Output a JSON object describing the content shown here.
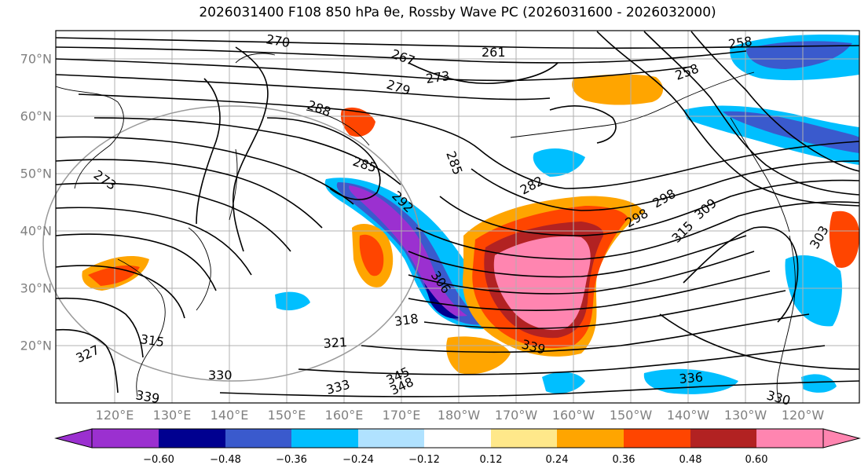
{
  "title": "2026031400 F108 850 hPa θe, Rossby Wave PC (2026031600 - 2026032000)",
  "map": {
    "region": "North Pacific",
    "projection": "cylindrical",
    "lat_labels": [
      "70°N",
      "60°N",
      "50°N",
      "40°N",
      "30°N",
      "20°N"
    ],
    "lon_labels": [
      "120°E",
      "130°E",
      "140°E",
      "150°E",
      "160°E",
      "170°E",
      "180°W",
      "170°W",
      "160°W",
      "150°W",
      "140°W",
      "130°W",
      "120°W"
    ],
    "contour_labels": [
      "270",
      "267",
      "261",
      "258",
      "258",
      "273",
      "279",
      "288",
      "285",
      "285",
      "282",
      "273",
      "292",
      "306",
      "298",
      "298",
      "309",
      "315",
      "318",
      "321",
      "315",
      "327",
      "339",
      "330",
      "333",
      "345",
      "348",
      "339",
      "336",
      "330",
      "303"
    ]
  },
  "colorbar": {
    "ticks": [
      "−0.60",
      "−0.48",
      "−0.36",
      "−0.24",
      "−0.12",
      "0.12",
      "0.24",
      "0.36",
      "0.48",
      "0.60"
    ],
    "colors": [
      "#9b30d0",
      "#000090",
      "#3a5acd",
      "#00bfff",
      "#b0e2ff",
      "#ffffff",
      "#ffe88a",
      "#ffa500",
      "#ff4500",
      "#b22222",
      "#ff85b0",
      "#ff85b0"
    ]
  },
  "features": {
    "negative_band": "purple/blue streak from Sea of Okhotsk southward to ~25°N along 165–175°E",
    "positive_blob": "orange/red/pink blob centered ~33°N, 165°W"
  }
}
